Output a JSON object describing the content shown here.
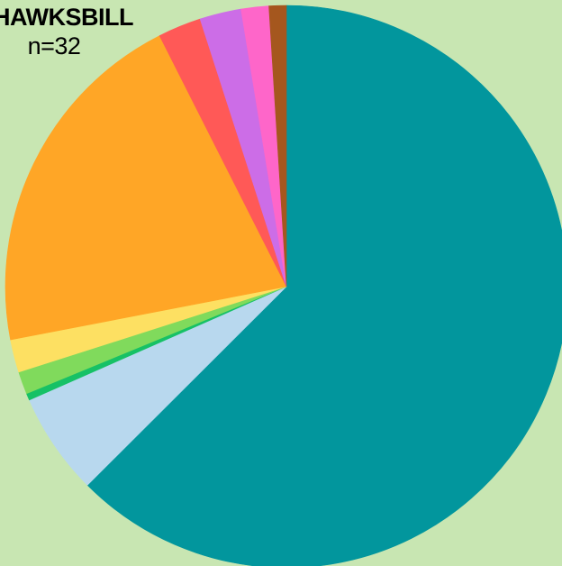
{
  "chart_data": {
    "type": "pie",
    "title": "HAWKSBILL",
    "subtitle": "n=32",
    "start_angle_deg": 0,
    "direction": "clockwise",
    "slices": [
      {
        "value": 62.9,
        "color": "#02969d"
      },
      {
        "value": 5.9,
        "color": "#b8d8ee"
      },
      {
        "value": 0.4,
        "color": "#16c166"
      },
      {
        "value": 1.3,
        "color": "#80da5c"
      },
      {
        "value": 1.9,
        "color": "#fde062"
      },
      {
        "value": 20.7,
        "color": "#ffa626"
      },
      {
        "value": 2.5,
        "color": "#ff5957"
      },
      {
        "value": 2.4,
        "color": "#cc6de7"
      },
      {
        "value": 1.6,
        "color": "#fe66c9"
      },
      {
        "value": 1.0,
        "color": "#a5571e"
      }
    ]
  }
}
